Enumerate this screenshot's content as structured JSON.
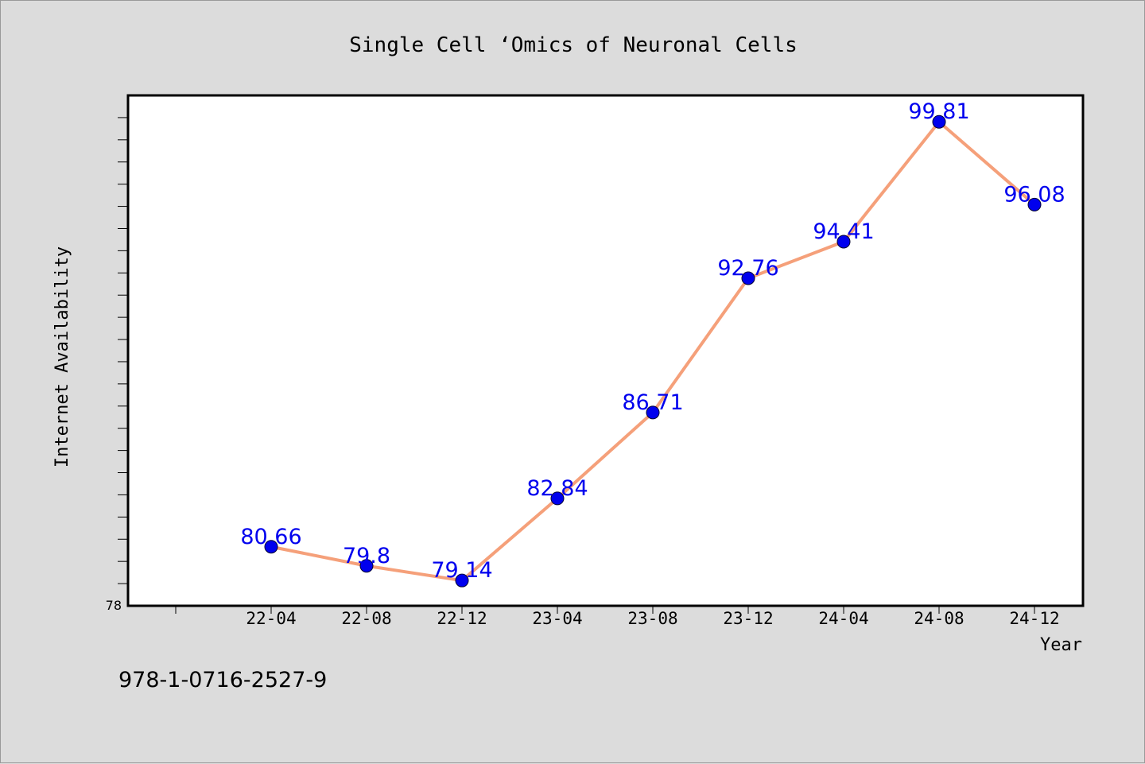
{
  "chart_data": {
    "type": "line",
    "title": "Single Cell  ‘Omics of Neuronal Cells",
    "xlabel": "Year",
    "ylabel": "Internet Availability",
    "categories": [
      "22-04",
      "22-08",
      "22-12",
      "23-04",
      "23-08",
      "23-12",
      "24-04",
      "24-08",
      "24-12"
    ],
    "series": [
      {
        "values": [
          80.66,
          79.8,
          79.14,
          82.84,
          86.71,
          92.76,
          94.41,
          99.81,
          96.08
        ],
        "labels": [
          "80.66",
          "79.8",
          "79.14",
          "82.84",
          "86.71",
          "92.76",
          "94.41",
          "99.81",
          "96.08"
        ],
        "line_color": "#f5a07a",
        "marker_color": "#0000ee"
      }
    ],
    "ylim": [
      78,
      101
    ],
    "yticks_labeled": [
      "78"
    ],
    "grid": false,
    "legend": "none"
  },
  "footer": {
    "isbn": "978-1-0716-2527-9"
  },
  "colors": {
    "background": "#dcdcdc",
    "plot_area": "#ffffff",
    "label_color": "#0000ee"
  }
}
